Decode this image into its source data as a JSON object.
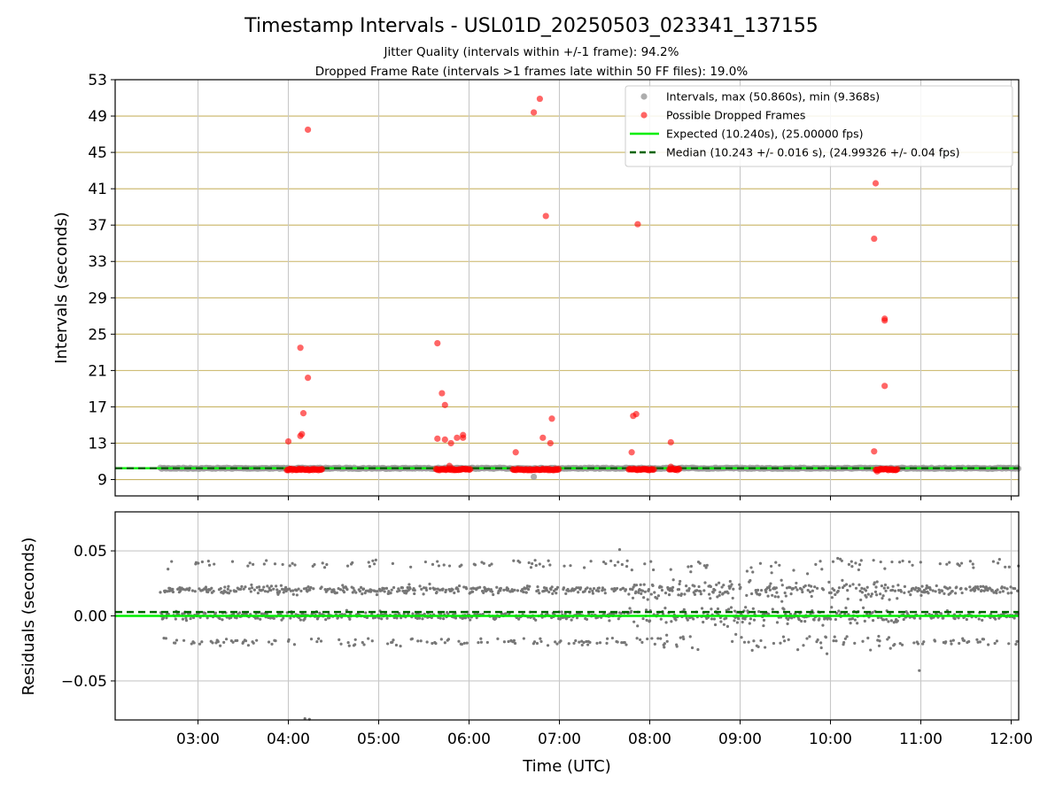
{
  "title": "Timestamp Intervals - USL01D_20250503_023341_137155",
  "subtitle_lines": [
    "Jitter Quality (intervals within +/-1 frame): 94.2%",
    "Dropped Frame Rate (intervals >1 frames late within 50 FF files): 19.0%"
  ],
  "colors": {
    "intervals": "#999999",
    "dropped": "#ff0000",
    "expected": "#00ee00",
    "median": "#006400",
    "residuals": "#777777",
    "hgrid_top": "#c8b464",
    "grid": "#c8c8c8"
  },
  "chart_data": [
    {
      "type": "scatter",
      "panel": "intervals",
      "ylabel": "Intervals (seconds)",
      "xlim": [
        "02:05",
        "12:05"
      ],
      "ylim": [
        7.2,
        53
      ],
      "yticks": [
        9,
        13,
        17,
        21,
        25,
        29,
        33,
        37,
        41,
        45,
        49,
        53
      ],
      "ygrid": "on",
      "xgrid": "on",
      "legend": {
        "position": "top-right",
        "entries": [
          "Intervals, max (50.860s), min (9.368s)",
          "Possible Dropped Frames",
          "Expected (10.240s), (25.00000 fps)",
          "Median (10.243 +/- 0.016 s), (24.99326 +/- 0.04 fps)"
        ]
      },
      "series": [
        {
          "name": "Intervals, max (50.860s), min (9.368s)",
          "kind": "dense_band",
          "x_range": [
            "02:35",
            "12:05"
          ],
          "y": 10.24,
          "extra_points": [
            {
              "x": "06:43",
              "y": 9.3
            }
          ]
        },
        {
          "name": "Possible Dropped Frames",
          "kind": "points",
          "points": [
            {
              "x": "04:00",
              "y": 13.2
            },
            {
              "x": "04:08",
              "y": 13.8
            },
            {
              "x": "04:09",
              "y": 14.0
            },
            {
              "x": "04:08",
              "y": 23.5
            },
            {
              "x": "04:10",
              "y": 16.3
            },
            {
              "x": "04:13",
              "y": 20.2
            },
            {
              "x": "04:13",
              "y": 47.5
            },
            {
              "x": "05:39",
              "y": 24.0
            },
            {
              "x": "05:39",
              "y": 13.5
            },
            {
              "x": "05:42",
              "y": 18.5
            },
            {
              "x": "05:44",
              "y": 17.2
            },
            {
              "x": "05:44",
              "y": 13.4
            },
            {
              "x": "05:48",
              "y": 13.0
            },
            {
              "x": "05:47",
              "y": 10.5
            },
            {
              "x": "05:52",
              "y": 13.6
            },
            {
              "x": "05:56",
              "y": 13.9
            },
            {
              "x": "05:56",
              "y": 13.6
            },
            {
              "x": "06:31",
              "y": 12.0
            },
            {
              "x": "06:43",
              "y": 49.4
            },
            {
              "x": "06:47",
              "y": 50.9
            },
            {
              "x": "06:51",
              "y": 38.0
            },
            {
              "x": "06:49",
              "y": 13.6
            },
            {
              "x": "06:54",
              "y": 13.0
            },
            {
              "x": "06:55",
              "y": 15.7
            },
            {
              "x": "07:48",
              "y": 12.0
            },
            {
              "x": "07:49",
              "y": 16.0
            },
            {
              "x": "07:51",
              "y": 16.2
            },
            {
              "x": "07:52",
              "y": 37.1
            },
            {
              "x": "08:14",
              "y": 13.1
            },
            {
              "x": "08:14",
              "y": 10.4
            },
            {
              "x": "10:29",
              "y": 35.5
            },
            {
              "x": "10:30",
              "y": 41.6
            },
            {
              "x": "10:29",
              "y": 12.1
            },
            {
              "x": "10:36",
              "y": 26.7
            },
            {
              "x": "10:36",
              "y": 26.5
            },
            {
              "x": "10:36",
              "y": 19.3
            },
            {
              "x": "10:31",
              "y": 9.9
            }
          ],
          "clusters_at_expected": [
            [
              "03:59",
              "04:23"
            ],
            [
              "05:38",
              "06:01"
            ],
            [
              "06:29",
              "07:00"
            ],
            [
              "07:46",
              "08:03"
            ],
            [
              "08:13",
              "08:20"
            ],
            [
              "10:30",
              "10:45"
            ]
          ]
        },
        {
          "name": "Expected (10.240s), (25.00000 fps)",
          "kind": "hline",
          "y": 10.24
        },
        {
          "name": "Median (10.243 +/- 0.016 s), (24.99326 +/- 0.04 fps)",
          "kind": "hline",
          "y": 10.243
        }
      ]
    },
    {
      "type": "scatter",
      "panel": "residuals",
      "ylabel": "Residuals (seconds)",
      "xlabel": "Time (UTC)",
      "xlim": [
        "02:05",
        "12:05"
      ],
      "xticks": [
        "03:00",
        "04:00",
        "05:00",
        "06:00",
        "07:00",
        "08:00",
        "09:00",
        "10:00",
        "11:00",
        "12:00"
      ],
      "ylim": [
        -0.08,
        0.08
      ],
      "yticks": [
        "0.05",
        "0.00",
        "−0.05"
      ],
      "grid": "on",
      "series": [
        {
          "name": "Residuals",
          "kind": "point_cloud",
          "x_range": [
            "02:35",
            "12:05"
          ],
          "levels": [
            0.02,
            0.0,
            -0.02,
            0.04
          ],
          "spread": 0.006,
          "outliers": [
            {
              "x": "04:11",
              "y": -0.079
            },
            {
              "x": "04:14",
              "y": -0.081
            },
            {
              "x": "10:59",
              "y": -0.042
            },
            {
              "x": "07:40",
              "y": 0.051
            }
          ]
        },
        {
          "name": "Expected",
          "kind": "hline",
          "y": 0.0
        },
        {
          "name": "Median",
          "kind": "hline",
          "y": 0.003
        }
      ]
    }
  ]
}
